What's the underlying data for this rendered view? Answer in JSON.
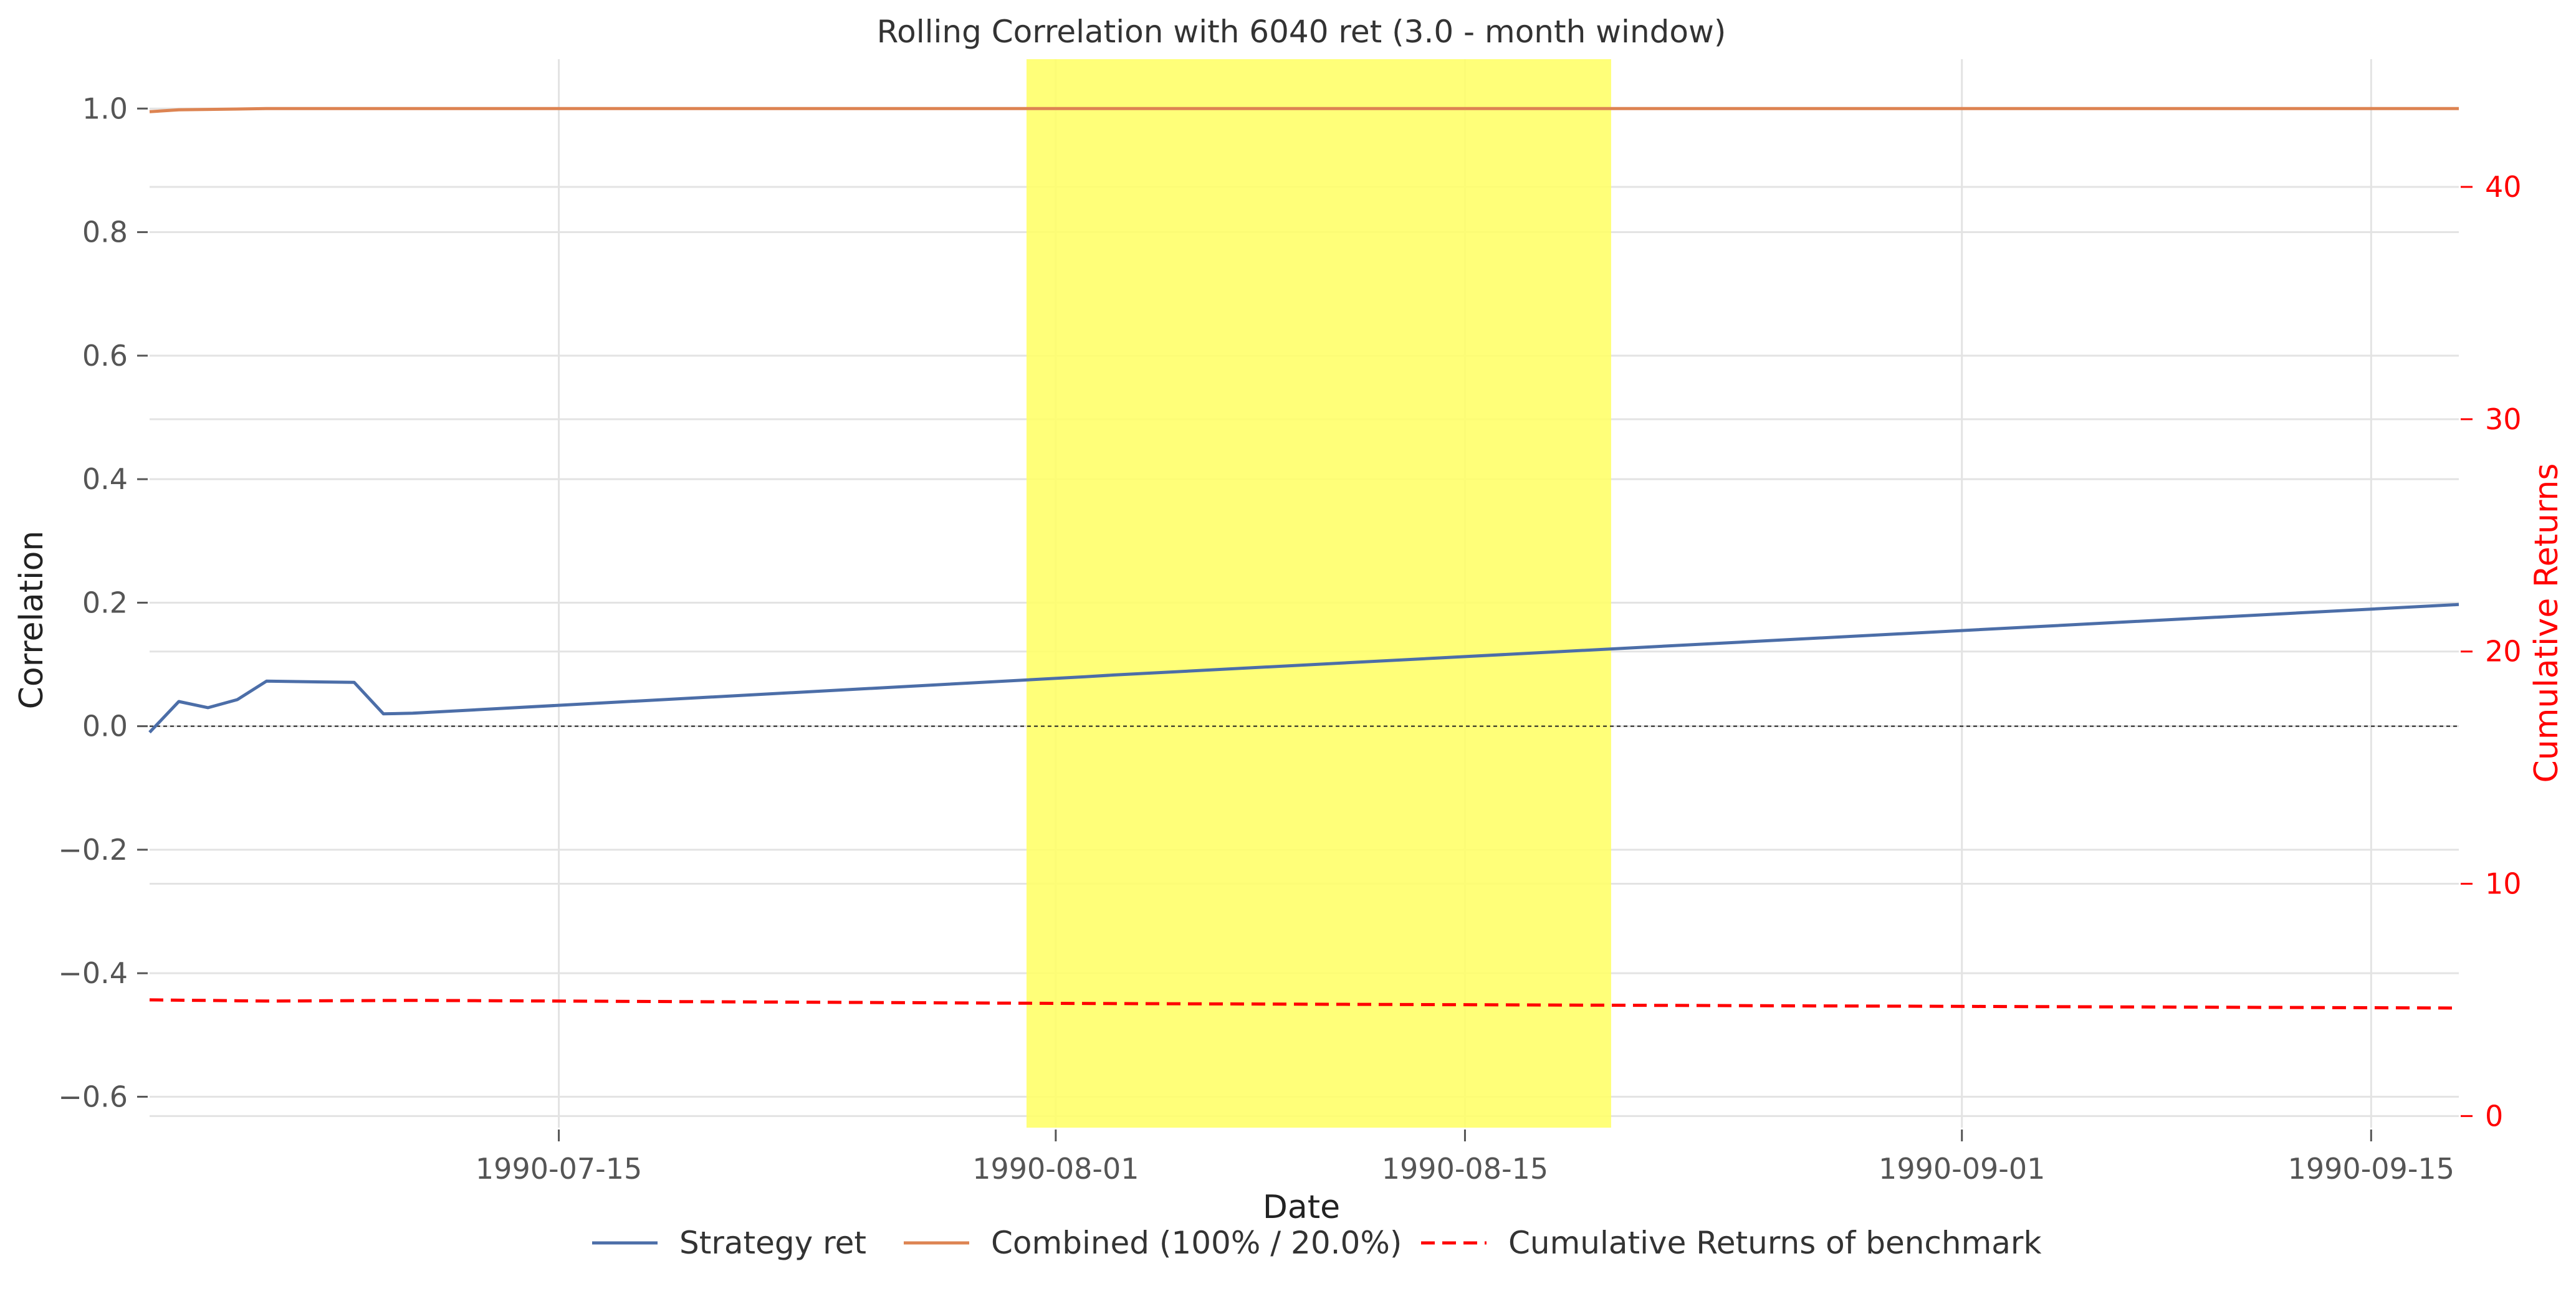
{
  "chart_data": {
    "type": "line",
    "title": "Rolling Correlation with 6040 ret (3.0 - month window)",
    "xlabel": "Date",
    "ylabel": "Correlation",
    "ylabel_right": "Cumulative Returns",
    "x_range": [
      "1990-07-01",
      "1990-09-18"
    ],
    "ylim": [
      -0.65,
      1.08
    ],
    "ylim_right": [
      -0.5,
      45.5
    ],
    "yticks": [
      "1.0",
      "0.8",
      "0.6",
      "0.4",
      "0.2",
      "0.0",
      "−0.2",
      "−0.4",
      "−0.6"
    ],
    "ytick_values": [
      1.0,
      0.8,
      0.6,
      0.4,
      0.2,
      0.0,
      -0.2,
      -0.4,
      -0.6
    ],
    "yticks_right": [
      "40",
      "30",
      "20",
      "10",
      "0"
    ],
    "ytick_right_values": [
      40,
      30,
      20,
      10,
      0
    ],
    "xticks": [
      "1990-07-15",
      "1990-08-01",
      "1990-08-15",
      "1990-09-01",
      "1990-09-15"
    ],
    "xtick_dates": [
      "1990-07-15",
      "1990-08-01",
      "1990-08-15",
      "1990-09-01",
      "1990-09-15"
    ],
    "grid": true,
    "highlight": {
      "start": "1990-07-31",
      "end": "1990-08-20",
      "color": "#ffff66"
    },
    "zero_line": true,
    "legend_position": "bottom-center",
    "series": [
      {
        "name": "Strategy ret",
        "color": "#4c6ea8",
        "dash": "solid",
        "axis": "left",
        "x": [
          "1990-07-01",
          "1990-07-02",
          "1990-07-03",
          "1990-07-04",
          "1990-07-05",
          "1990-07-08",
          "1990-07-09",
          "1990-07-10",
          "1990-08-02",
          "1990-08-03",
          "1990-09-18"
        ],
        "y": [
          -0.01,
          0.04,
          0.03,
          0.043,
          0.073,
          0.071,
          0.02,
          0.021,
          0.08,
          0.083,
          0.197
        ]
      },
      {
        "name": "Combined (100% / 20.0%)",
        "color": "#dd8452",
        "dash": "solid",
        "axis": "left",
        "x": [
          "1990-07-01",
          "1990-07-02",
          "1990-07-05",
          "1990-09-18"
        ],
        "y": [
          0.995,
          0.998,
          1.0,
          1.0
        ]
      },
      {
        "name": "Cumulative Returns of benchmark",
        "color": "#ff0000",
        "dash": "dashed",
        "axis": "right",
        "x": [
          "1990-07-01",
          "1990-07-05",
          "1990-07-10",
          "1990-08-01",
          "1990-09-18"
        ],
        "y": [
          5.0,
          4.95,
          4.98,
          4.85,
          4.65
        ]
      }
    ]
  }
}
